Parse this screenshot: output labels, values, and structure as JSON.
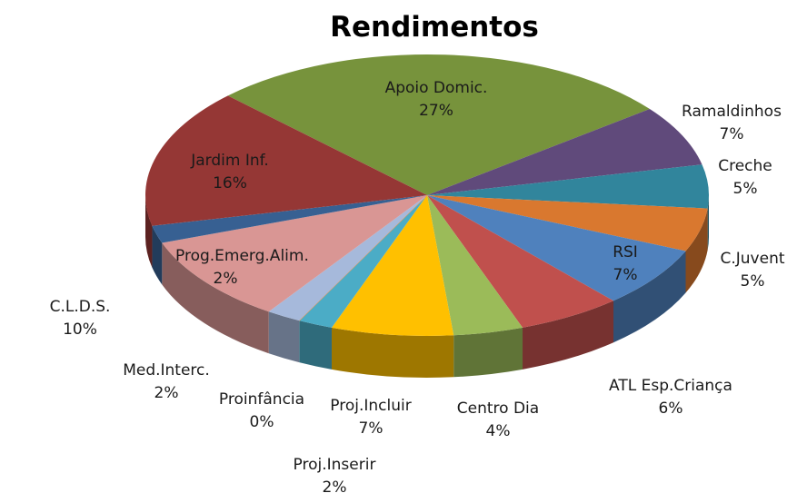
{
  "chart_data": {
    "type": "pie3d",
    "title": "Rendimentos",
    "categories": [
      "Apoio Domic.",
      "Ramaldinhos",
      "Creche",
      "C.Juvent",
      "RSI",
      "ATL Esp.Criança",
      "Centro Dia",
      "Proj.Incluir",
      "Proj.Inserir",
      "Proinfância",
      "Med.Interc.",
      "C.L.D.S.",
      "Prog.Emerg.Alim.",
      "Jardim Inf."
    ],
    "values": [
      27,
      7,
      5,
      5,
      7,
      6,
      4,
      7,
      2,
      0,
      2,
      10,
      2,
      16
    ],
    "value_labels": [
      "27%",
      "7%",
      "5%",
      "5%",
      "7%",
      "6%",
      "4%",
      "7%",
      "2%",
      "0%",
      "2%",
      "10%",
      "2%",
      "16%"
    ],
    "colors": [
      "#77933c",
      "#604a7b",
      "#31859c",
      "#d9782f",
      "#4f81bd",
      "#c0504d",
      "#9bbb59",
      "#ffc000",
      "#4bacc6",
      "#f79646",
      "#a6b9db",
      "#d99694",
      "#376092",
      "#953735"
    ]
  }
}
